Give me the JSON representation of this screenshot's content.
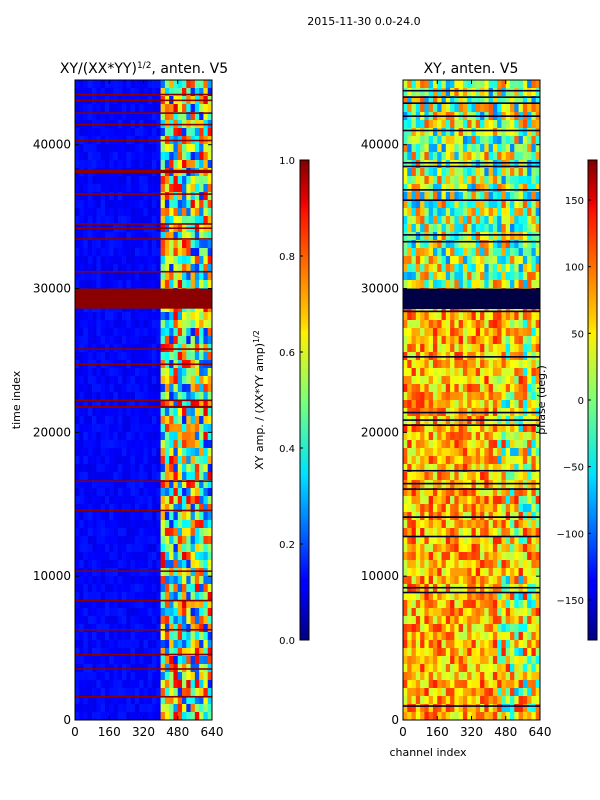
{
  "suptitle": "2015-11-30 0.0-24.0",
  "chart_data": [
    {
      "type": "heatmap",
      "title_main": "XY/(XX*YY)",
      "title_exp": "1/2",
      "title_tail": ", anten. V5",
      "xlabel": "",
      "ylabel": "time index",
      "xlim": [
        0,
        640
      ],
      "ylim": [
        0,
        44500
      ],
      "xticks": [
        0,
        160,
        320,
        480,
        640
      ],
      "yticks": [
        0,
        10000,
        20000,
        30000,
        40000
      ],
      "xtick_labels": [
        "0",
        "160",
        "320",
        "480",
        "640"
      ],
      "ytick_labels": [
        "0",
        "10000",
        "20000",
        "30000",
        "40000"
      ],
      "colorbar": {
        "label_main": "XY amp. / (XX*YY amp)",
        "label_exp": "1/2",
        "range": [
          0.0,
          1.0
        ],
        "ticks": [
          0.0,
          0.2,
          0.4,
          0.6,
          0.8,
          1.0
        ],
        "tick_labels": [
          "0.0",
          "0.2",
          "0.4",
          "0.6",
          "0.8",
          "1.0"
        ],
        "colormap": "jet"
      },
      "value_regions": [
        {
          "description": "background",
          "channels": [
            0,
            400
          ],
          "value": 0.12
        },
        {
          "description": "active band",
          "channels": [
            400,
            640
          ],
          "value_range": [
            0.1,
            0.9
          ]
        },
        {
          "description": "saturated block",
          "times": [
            28600,
            30000
          ],
          "value": 0.95
        }
      ]
    },
    {
      "type": "heatmap",
      "title": "XY, anten. V5",
      "xlabel": "channel index",
      "ylabel": "",
      "xlim": [
        0,
        640
      ],
      "ylim": [
        0,
        44500
      ],
      "xticks": [
        0,
        160,
        320,
        480,
        640
      ],
      "yticks": [
        0,
        10000,
        20000,
        30000,
        40000
      ],
      "xtick_labels": [
        "0",
        "160",
        "320",
        "480",
        "640"
      ],
      "ytick_labels": [
        "0",
        "10000",
        "20000",
        "30000",
        "40000"
      ],
      "colorbar": {
        "label": "phase (deg.)",
        "range": [
          -180,
          180
        ],
        "ticks": [
          -150,
          -100,
          -50,
          0,
          50,
          100,
          150
        ],
        "tick_labels": [
          "−150",
          "−100",
          "−50",
          "0",
          "50",
          "100",
          "150"
        ],
        "colormap": "jet"
      },
      "value_regions": [
        {
          "description": "dominant phase",
          "value_range": [
            40,
            110
          ]
        },
        {
          "description": "flagged rows",
          "times": [
            28600,
            30000
          ],
          "value": -180
        }
      ]
    }
  ]
}
